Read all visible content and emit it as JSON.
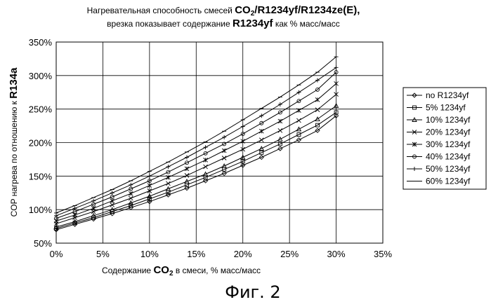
{
  "figure_caption": "Фиг. 2",
  "chart_data": {
    "type": "line",
    "title_line1": {
      "prefix": "Нагревательная способность смесей ",
      "co2": "CO",
      "co2_sub": "2",
      "suffix": "/R1234yf/R1234ze(E),"
    },
    "title_line2": {
      "prefix": "врезка показывает содержание ",
      "bold": "R1234yf",
      "suffix": " как % масс/масс"
    },
    "xlabel": {
      "prefix": "Содержание ",
      "co2": "CO",
      "co2_sub": "2",
      "suffix": " в смеси, % масс/масс"
    },
    "ylabel": {
      "prefix": "COP нагрева по отношению к ",
      "bold": "R134a"
    },
    "xlim": [
      0,
      35
    ],
    "ylim": [
      50,
      350
    ],
    "x_tick_values": [
      0,
      5,
      10,
      15,
      20,
      25,
      30,
      35
    ],
    "x_tick_labels": [
      "0%",
      "5%",
      "10%",
      "15%",
      "20%",
      "25%",
      "30%",
      "35%"
    ],
    "y_tick_values": [
      50,
      100,
      150,
      200,
      250,
      300,
      350
    ],
    "y_tick_labels": [
      "50%",
      "100%",
      "150%",
      "200%",
      "250%",
      "300%",
      "350%"
    ],
    "grid": true,
    "legend_position": "right",
    "x": [
      0,
      2,
      4,
      6,
      8,
      10,
      12,
      14,
      16,
      18,
      20,
      22,
      24,
      26,
      28,
      30
    ],
    "series": [
      {
        "name": "no R1234yf",
        "marker": "diamond",
        "values": [
          70,
          78,
          86,
          94,
          103,
          112,
          122,
          132,
          143,
          154,
          166,
          178,
          191,
          204,
          218,
          240
        ]
      },
      {
        "name": "5% 1234yf",
        "marker": "square",
        "values": [
          72,
          80,
          88,
          97,
          106,
          116,
          126,
          137,
          148,
          160,
          172,
          185,
          198,
          212,
          226,
          245
        ]
      },
      {
        "name": "10% 1234yf",
        "marker": "triangle",
        "values": [
          74,
          82,
          91,
          100,
          110,
          120,
          131,
          142,
          153,
          165,
          178,
          191,
          205,
          220,
          235,
          255
        ]
      },
      {
        "name": "20% 1234yf",
        "marker": "x",
        "values": [
          79,
          88,
          97,
          107,
          117,
          128,
          139,
          151,
          164,
          177,
          190,
          204,
          218,
          233,
          249,
          272
        ]
      },
      {
        "name": "30% 1234yf",
        "marker": "star",
        "values": [
          83,
          92,
          102,
          113,
          124,
          136,
          148,
          161,
          174,
          188,
          202,
          217,
          232,
          248,
          264,
          288
        ]
      },
      {
        "name": "40% 1234yf",
        "marker": "circle",
        "values": [
          87,
          97,
          108,
          119,
          131,
          143,
          156,
          170,
          184,
          198,
          213,
          229,
          245,
          262,
          279,
          305
        ]
      },
      {
        "name": "50% 1234yf",
        "marker": "plus",
        "values": [
          91,
          102,
          113,
          125,
          137,
          150,
          164,
          178,
          193,
          208,
          224,
          240,
          257,
          275,
          293,
          312
        ]
      },
      {
        "name": "60% 1234yf",
        "marker": "dash",
        "values": [
          95,
          106,
          118,
          130,
          143,
          157,
          171,
          186,
          201,
          217,
          234,
          251,
          268,
          286,
          305,
          328
        ]
      }
    ]
  }
}
